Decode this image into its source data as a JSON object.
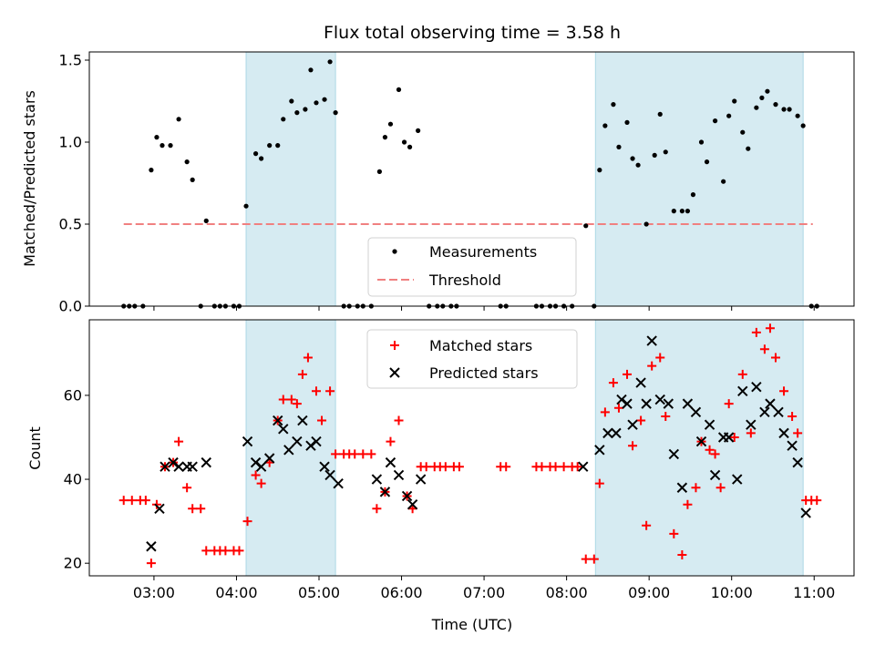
{
  "title": "Flux total observing time = 3.58 h",
  "colors": {
    "measurement": "#000000",
    "threshold": "#f08080",
    "shade": "#add8e6",
    "matched": "#ff0000",
    "predicted": "#000000"
  },
  "chart_data": [
    {
      "type": "scatter",
      "ylabel": "Matched/Predicted stars",
      "xlim": [
        "02:13",
        "11:29"
      ],
      "ylim": [
        0,
        1.55
      ],
      "yticks": [
        0,
        0.5,
        1.0,
        1.5
      ],
      "ytick_labels": [
        "0.0",
        "0.5",
        "1.0",
        "1.5"
      ],
      "legend": {
        "placement": "lower-center",
        "entries": [
          "Measurements",
          "Threshold"
        ]
      },
      "shaded_intervals": [
        [
          "04:07",
          "05:12"
        ],
        [
          "08:21",
          "10:52"
        ]
      ],
      "threshold": {
        "name": "Threshold",
        "value": 0.5,
        "x_range": [
          "02:38",
          "10:59"
        ]
      },
      "series": [
        {
          "name": "Measurements",
          "marker": "dot",
          "points": [
            [
              "02:38",
              0
            ],
            [
              "02:42",
              0
            ],
            [
              "02:46",
              0
            ],
            [
              "02:52",
              0
            ],
            [
              "02:58",
              0.83
            ],
            [
              "03:02",
              1.03
            ],
            [
              "03:06",
              0.98
            ],
            [
              "03:12",
              0.98
            ],
            [
              "03:18",
              1.14
            ],
            [
              "03:24",
              0.88
            ],
            [
              "03:28",
              0.77
            ],
            [
              "03:34",
              0
            ],
            [
              "03:38",
              0.52
            ],
            [
              "03:44",
              0
            ],
            [
              "03:48",
              0
            ],
            [
              "03:52",
              0
            ],
            [
              "03:58",
              0
            ],
            [
              "04:02",
              0
            ],
            [
              "04:07",
              0.61
            ],
            [
              "04:14",
              0.93
            ],
            [
              "04:18",
              0.9
            ],
            [
              "04:24",
              0.98
            ],
            [
              "04:30",
              0.98
            ],
            [
              "04:34",
              1.14
            ],
            [
              "04:40",
              1.25
            ],
            [
              "04:44",
              1.18
            ],
            [
              "04:50",
              1.2
            ],
            [
              "04:54",
              1.44
            ],
            [
              "04:58",
              1.24
            ],
            [
              "05:04",
              1.26
            ],
            [
              "05:08",
              1.49
            ],
            [
              "05:12",
              1.18
            ],
            [
              "05:18",
              0
            ],
            [
              "05:22",
              0
            ],
            [
              "05:28",
              0
            ],
            [
              "05:32",
              0
            ],
            [
              "05:38",
              0
            ],
            [
              "05:44",
              0.82
            ],
            [
              "05:48",
              1.03
            ],
            [
              "05:52",
              1.11
            ],
            [
              "05:58",
              1.32
            ],
            [
              "06:02",
              1.0
            ],
            [
              "06:06",
              0.97
            ],
            [
              "06:12",
              1.07
            ],
            [
              "06:20",
              0
            ],
            [
              "06:26",
              0
            ],
            [
              "06:30",
              0
            ],
            [
              "06:36",
              0
            ],
            [
              "06:40",
              0
            ],
            [
              "07:12",
              0
            ],
            [
              "07:16",
              0
            ],
            [
              "07:38",
              0
            ],
            [
              "07:42",
              0
            ],
            [
              "07:48",
              0
            ],
            [
              "07:52",
              0
            ],
            [
              "07:58",
              0
            ],
            [
              "08:04",
              0
            ],
            [
              "08:14",
              0.49
            ],
            [
              "08:20",
              0
            ],
            [
              "08:24",
              0.83
            ],
            [
              "08:28",
              1.1
            ],
            [
              "08:34",
              1.23
            ],
            [
              "08:38",
              0.97
            ],
            [
              "08:44",
              1.12
            ],
            [
              "08:48",
              0.9
            ],
            [
              "08:52",
              0.86
            ],
            [
              "08:58",
              0.5
            ],
            [
              "09:04",
              0.92
            ],
            [
              "09:08",
              1.17
            ],
            [
              "09:12",
              0.94
            ],
            [
              "09:18",
              0.58
            ],
            [
              "09:24",
              0.58
            ],
            [
              "09:28",
              0.58
            ],
            [
              "09:32",
              0.68
            ],
            [
              "09:38",
              1.0
            ],
            [
              "09:42",
              0.88
            ],
            [
              "09:48",
              1.13
            ],
            [
              "09:54",
              0.76
            ],
            [
              "09:58",
              1.16
            ],
            [
              "10:02",
              1.25
            ],
            [
              "10:08",
              1.06
            ],
            [
              "10:12",
              0.96
            ],
            [
              "10:18",
              1.21
            ],
            [
              "10:22",
              1.27
            ],
            [
              "10:26",
              1.31
            ],
            [
              "10:32",
              1.23
            ],
            [
              "10:38",
              1.2
            ],
            [
              "10:42",
              1.2
            ],
            [
              "10:48",
              1.16
            ],
            [
              "10:52",
              1.1
            ],
            [
              "10:58",
              0
            ],
            [
              "11:02",
              0
            ]
          ]
        }
      ]
    },
    {
      "type": "scatter",
      "xlabel": "Time (UTC)",
      "ylabel": "Count",
      "xlim": [
        "02:13",
        "11:29"
      ],
      "ylim": [
        17,
        78
      ],
      "yticks": [
        20,
        40,
        60
      ],
      "xticks": [
        "03:00",
        "04:00",
        "05:00",
        "06:00",
        "07:00",
        "08:00",
        "09:00",
        "10:00",
        "11:00"
      ],
      "legend": {
        "placement": "top-center",
        "entries": [
          "Matched stars",
          "Predicted stars"
        ]
      },
      "shaded_intervals": [
        [
          "04:07",
          "05:12"
        ],
        [
          "08:21",
          "10:52"
        ]
      ],
      "series": [
        {
          "name": "Matched stars",
          "marker": "plus",
          "points": [
            [
              "02:38",
              35
            ],
            [
              "02:44",
              35
            ],
            [
              "02:50",
              35
            ],
            [
              "02:54",
              35
            ],
            [
              "02:58",
              20
            ],
            [
              "03:02",
              34
            ],
            [
              "03:08",
              43
            ],
            [
              "03:14",
              44
            ],
            [
              "03:18",
              49
            ],
            [
              "03:24",
              38
            ],
            [
              "03:28",
              33
            ],
            [
              "03:34",
              33
            ],
            [
              "03:38",
              23
            ],
            [
              "03:44",
              23
            ],
            [
              "03:48",
              23
            ],
            [
              "03:52",
              23
            ],
            [
              "03:58",
              23
            ],
            [
              "04:02",
              23
            ],
            [
              "04:08",
              30
            ],
            [
              "04:14",
              41
            ],
            [
              "04:18",
              39
            ],
            [
              "04:24",
              44
            ],
            [
              "04:30",
              54
            ],
            [
              "04:34",
              59
            ],
            [
              "04:40",
              59
            ],
            [
              "04:44",
              58
            ],
            [
              "04:48",
              65
            ],
            [
              "04:52",
              69
            ],
            [
              "04:58",
              61
            ],
            [
              "05:02",
              54
            ],
            [
              "05:08",
              61
            ],
            [
              "05:12",
              46
            ],
            [
              "05:18",
              46
            ],
            [
              "05:22",
              46
            ],
            [
              "05:26",
              46
            ],
            [
              "05:32",
              46
            ],
            [
              "05:38",
              46
            ],
            [
              "05:42",
              33
            ],
            [
              "05:48",
              37
            ],
            [
              "05:52",
              49
            ],
            [
              "05:58",
              54
            ],
            [
              "06:04",
              36
            ],
            [
              "06:08",
              33
            ],
            [
              "06:14",
              43
            ],
            [
              "06:18",
              43
            ],
            [
              "06:24",
              43
            ],
            [
              "06:28",
              43
            ],
            [
              "06:32",
              43
            ],
            [
              "06:38",
              43
            ],
            [
              "06:42",
              43
            ],
            [
              "07:12",
              43
            ],
            [
              "07:16",
              43
            ],
            [
              "07:38",
              43
            ],
            [
              "07:42",
              43
            ],
            [
              "07:48",
              43
            ],
            [
              "07:52",
              43
            ],
            [
              "07:58",
              43
            ],
            [
              "08:04",
              43
            ],
            [
              "08:08",
              43
            ],
            [
              "08:14",
              21
            ],
            [
              "08:20",
              21
            ],
            [
              "08:24",
              39
            ],
            [
              "08:28",
              56
            ],
            [
              "08:34",
              63
            ],
            [
              "08:38",
              57
            ],
            [
              "08:44",
              65
            ],
            [
              "08:48",
              48
            ],
            [
              "08:54",
              54
            ],
            [
              "08:58",
              29
            ],
            [
              "09:02",
              67
            ],
            [
              "09:08",
              69
            ],
            [
              "09:12",
              55
            ],
            [
              "09:18",
              27
            ],
            [
              "09:24",
              22
            ],
            [
              "09:28",
              34
            ],
            [
              "09:34",
              38
            ],
            [
              "09:38",
              49
            ],
            [
              "09:44",
              47
            ],
            [
              "09:48",
              46
            ],
            [
              "09:52",
              38
            ],
            [
              "09:58",
              58
            ],
            [
              "10:02",
              50
            ],
            [
              "10:08",
              65
            ],
            [
              "10:14",
              51
            ],
            [
              "10:18",
              75
            ],
            [
              "10:24",
              71
            ],
            [
              "10:28",
              76
            ],
            [
              "10:32",
              69
            ],
            [
              "10:38",
              61
            ],
            [
              "10:44",
              55
            ],
            [
              "10:48",
              51
            ],
            [
              "10:54",
              35
            ],
            [
              "10:58",
              35
            ],
            [
              "11:02",
              35
            ]
          ]
        },
        {
          "name": "Predicted stars",
          "marker": "x",
          "points": [
            [
              "02:58",
              24
            ],
            [
              "03:04",
              33
            ],
            [
              "03:08",
              43
            ],
            [
              "03:14",
              44
            ],
            [
              "03:18",
              43
            ],
            [
              "03:24",
              43
            ],
            [
              "03:28",
              43
            ],
            [
              "03:38",
              44
            ],
            [
              "04:08",
              49
            ],
            [
              "04:14",
              44
            ],
            [
              "04:18",
              43
            ],
            [
              "04:24",
              45
            ],
            [
              "04:30",
              54
            ],
            [
              "04:34",
              52
            ],
            [
              "04:38",
              47
            ],
            [
              "04:44",
              49
            ],
            [
              "04:48",
              54
            ],
            [
              "04:54",
              48
            ],
            [
              "04:58",
              49
            ],
            [
              "05:04",
              43
            ],
            [
              "05:08",
              41
            ],
            [
              "05:14",
              39
            ],
            [
              "05:42",
              40
            ],
            [
              "05:48",
              37
            ],
            [
              "05:52",
              44
            ],
            [
              "05:58",
              41
            ],
            [
              "06:04",
              36
            ],
            [
              "06:08",
              34
            ],
            [
              "06:14",
              40
            ],
            [
              "08:12",
              43
            ],
            [
              "08:24",
              47
            ],
            [
              "08:30",
              51
            ],
            [
              "08:36",
              51
            ],
            [
              "08:40",
              59
            ],
            [
              "08:44",
              58
            ],
            [
              "08:48",
              53
            ],
            [
              "08:54",
              63
            ],
            [
              "08:58",
              58
            ],
            [
              "09:02",
              73
            ],
            [
              "09:08",
              59
            ],
            [
              "09:14",
              58
            ],
            [
              "09:18",
              46
            ],
            [
              "09:24",
              38
            ],
            [
              "09:28",
              58
            ],
            [
              "09:34",
              56
            ],
            [
              "09:38",
              49
            ],
            [
              "09:44",
              53
            ],
            [
              "09:48",
              41
            ],
            [
              "09:54",
              50
            ],
            [
              "09:58",
              50
            ],
            [
              "10:04",
              40
            ],
            [
              "10:08",
              61
            ],
            [
              "10:14",
              53
            ],
            [
              "10:18",
              62
            ],
            [
              "10:24",
              56
            ],
            [
              "10:28",
              58
            ],
            [
              "10:34",
              56
            ],
            [
              "10:38",
              51
            ],
            [
              "10:44",
              48
            ],
            [
              "10:48",
              44
            ],
            [
              "10:54",
              32
            ]
          ]
        }
      ]
    }
  ]
}
